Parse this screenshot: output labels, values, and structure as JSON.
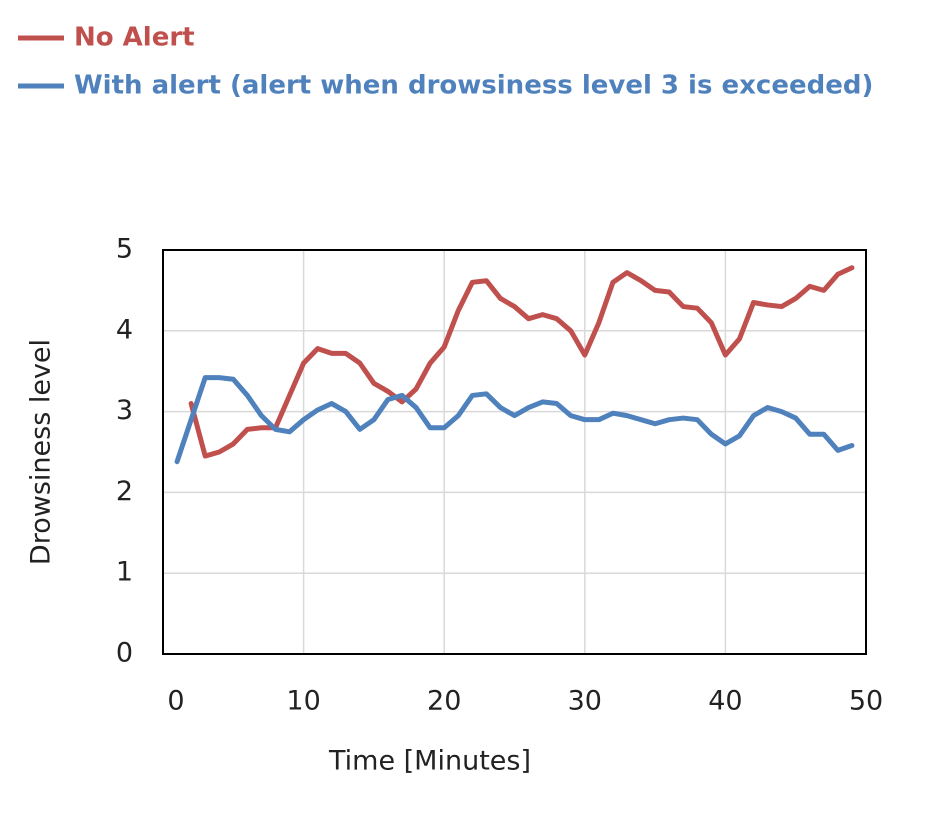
{
  "chart_data": {
    "type": "line",
    "x": [
      1,
      2,
      3,
      4,
      5,
      6,
      7,
      8,
      9,
      10,
      11,
      12,
      13,
      14,
      15,
      16,
      17,
      18,
      19,
      20,
      21,
      22,
      23,
      24,
      25,
      26,
      27,
      28,
      29,
      30,
      31,
      32,
      33,
      34,
      35,
      36,
      37,
      38,
      39,
      40,
      41,
      42,
      43,
      44,
      45,
      46,
      47,
      48,
      49
    ],
    "series": [
      {
        "name": "No Alert",
        "color": "#c0504d",
        "values": [
          null,
          3.1,
          2.45,
          2.5,
          2.6,
          2.78,
          2.8,
          2.8,
          3.2,
          3.6,
          3.78,
          3.72,
          3.72,
          3.6,
          3.35,
          3.25,
          3.12,
          3.28,
          3.6,
          3.8,
          4.25,
          4.6,
          4.62,
          4.4,
          4.3,
          4.15,
          4.2,
          4.15,
          4.0,
          3.7,
          4.1,
          4.6,
          4.72,
          4.62,
          4.5,
          4.48,
          4.3,
          4.28,
          4.1,
          3.7,
          3.9,
          4.35,
          4.32,
          4.3,
          4.4,
          4.55,
          4.5,
          4.7,
          4.78
        ]
      },
      {
        "name": "With alert (alert when drowsiness level 3 is exceeded)",
        "color": "#4f81bd",
        "values": [
          2.38,
          2.9,
          3.42,
          3.42,
          3.4,
          3.2,
          2.95,
          2.78,
          2.75,
          2.9,
          3.02,
          3.1,
          3.0,
          2.78,
          2.9,
          3.15,
          3.2,
          3.05,
          2.8,
          2.8,
          2.95,
          3.2,
          3.22,
          3.05,
          2.95,
          3.05,
          3.12,
          3.1,
          2.95,
          2.9,
          2.9,
          2.98,
          2.95,
          2.9,
          2.85,
          2.9,
          2.92,
          2.9,
          2.72,
          2.6,
          2.7,
          2.95,
          3.05,
          3.0,
          2.92,
          2.72,
          2.72,
          2.52,
          2.58
        ]
      }
    ],
    "x_label": "Time [Minutes]",
    "y_label": "Drowsiness level",
    "xlim": [
      0,
      50
    ],
    "xticks": [
      0,
      10,
      20,
      30,
      40,
      50
    ],
    "ylim": [
      0,
      5
    ],
    "yticks": [
      0,
      1,
      2,
      3,
      4,
      5
    ],
    "grid": true,
    "legend": "top-left"
  }
}
